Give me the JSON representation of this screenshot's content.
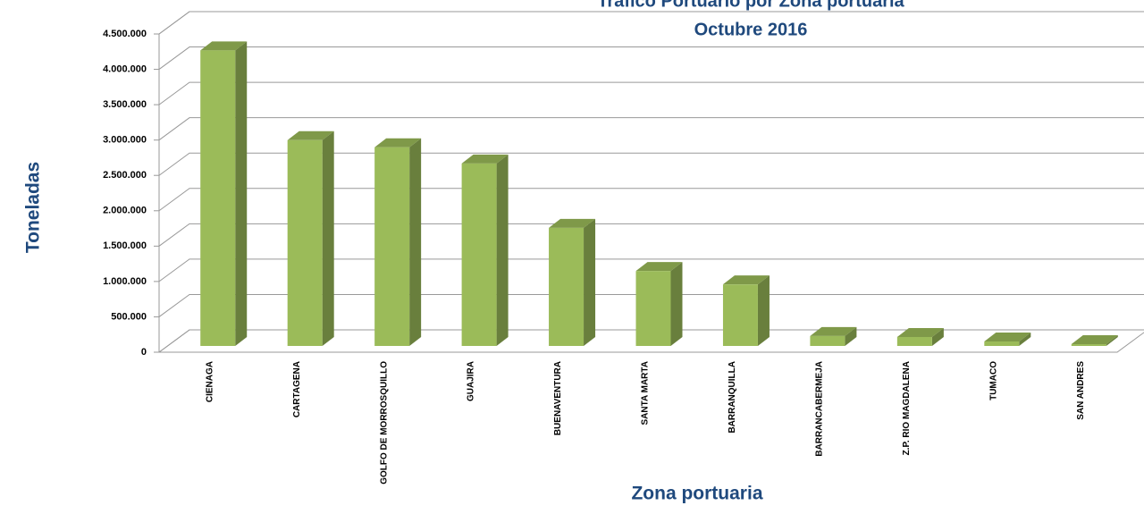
{
  "chart_data": {
    "type": "bar3d",
    "title": "Tráfico Portuario por Zona portuaria",
    "subtitle": "Octubre 2016",
    "y_label": "Toneladas",
    "x_label": "Zona portuaria",
    "categories": [
      "CIENAGA",
      "CARTAGENA",
      "GOLFO DE MORROSQUILLO",
      "GUAJIRA",
      "BUENAVENTURA",
      "SANTA MARTA",
      "BARRANQUILLA",
      "BARRANCABERMEJA",
      "Z.P. RIO MAGDALENA",
      "TUMACO",
      "SAN ANDRES"
    ],
    "values": [
      4180000,
      2910000,
      2810000,
      2580000,
      1670000,
      1060000,
      870000,
      140000,
      127000,
      63000,
      25000
    ],
    "color": "#9bbb59",
    "ylim": [
      0,
      4500000
    ],
    "yticks": [
      0,
      {
        "value": 500000,
        "label": "500.000"
      },
      {
        "value": 1000000,
        "label": "1.000.000"
      },
      {
        "value": 1500000,
        "label": "1.500.000"
      },
      {
        "value": 2000000,
        "label": "2.000.000"
      },
      {
        "value": 2500000,
        "label": "2.500.000"
      },
      {
        "value": 3000000,
        "label": "3.000.000"
      },
      {
        "value": 3500000,
        "label": "3.500.000"
      },
      {
        "value": 4000000,
        "label": "4.000.000"
      },
      {
        "value": 4500000,
        "label": "4.500.000"
      }
    ],
    "grid": true
  }
}
